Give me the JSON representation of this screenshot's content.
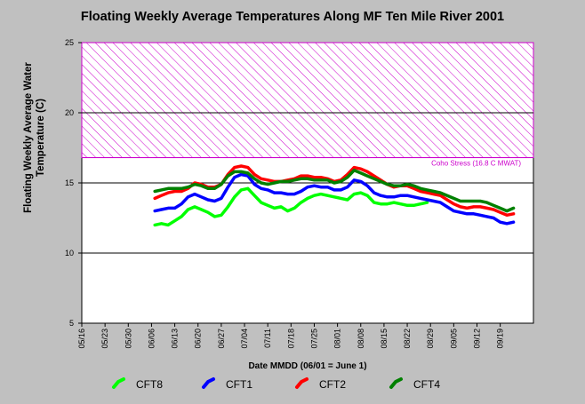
{
  "chart_data": {
    "type": "line",
    "title": "Floating Weekly Average Temperatures Along MF Ten Mile River 2001",
    "xlabel": "Date MMDD (06/01 = June 1)",
    "ylabel": "Floating Weekly Average Water Temperature (C)",
    "ylim": [
      5,
      25
    ],
    "yticks": [
      5,
      10,
      15,
      20,
      25
    ],
    "xlim": [
      "05/16",
      "09/29"
    ],
    "xticks": [
      "05/16",
      "05/23",
      "05/30",
      "06/06",
      "06/13",
      "06/20",
      "06/27",
      "07/04",
      "07/11",
      "07/18",
      "07/25",
      "08/01",
      "08/08",
      "08/15",
      "08/22",
      "08/29",
      "09/05",
      "09/12",
      "09/19"
    ],
    "grid": "horizontal",
    "legend_position": "bottom",
    "threshold": {
      "label": "Coho Stress (16.8 C MWAT)",
      "value": 16.8,
      "upper": 25,
      "color": "#cc00cc"
    },
    "series": [
      {
        "name": "CFT8",
        "color": "#00ff00",
        "x": [
          "06/07",
          "06/09",
          "06/11",
          "06/13",
          "06/15",
          "06/17",
          "06/19",
          "06/21",
          "06/23",
          "06/25",
          "06/27",
          "06/29",
          "07/01",
          "07/03",
          "07/05",
          "07/07",
          "07/09",
          "07/11",
          "07/13",
          "07/15",
          "07/17",
          "07/19",
          "07/21",
          "07/23",
          "07/25",
          "07/27",
          "07/29",
          "07/31",
          "08/02",
          "08/04",
          "08/06",
          "08/08",
          "08/10",
          "08/12",
          "08/14",
          "08/16",
          "08/18",
          "08/20",
          "08/22",
          "08/24",
          "08/26",
          "08/28"
        ],
        "values": [
          12.0,
          12.1,
          12.0,
          12.3,
          12.6,
          13.1,
          13.3,
          13.1,
          12.9,
          12.6,
          12.7,
          13.3,
          14.0,
          14.5,
          14.6,
          14.1,
          13.6,
          13.4,
          13.2,
          13.3,
          13.0,
          13.2,
          13.6,
          13.9,
          14.1,
          14.2,
          14.1,
          14.0,
          13.9,
          13.8,
          14.2,
          14.3,
          14.1,
          13.6,
          13.5,
          13.5,
          13.6,
          13.5,
          13.4,
          13.4,
          13.5,
          13.6
        ]
      },
      {
        "name": "CFT1",
        "color": "#0000ff",
        "x": [
          "06/07",
          "06/09",
          "06/11",
          "06/13",
          "06/15",
          "06/17",
          "06/19",
          "06/21",
          "06/23",
          "06/25",
          "06/27",
          "06/29",
          "07/01",
          "07/03",
          "07/05",
          "07/07",
          "07/09",
          "07/11",
          "07/13",
          "07/15",
          "07/17",
          "07/19",
          "07/21",
          "07/23",
          "07/25",
          "07/27",
          "07/29",
          "07/31",
          "08/02",
          "08/04",
          "08/06",
          "08/08",
          "08/10",
          "08/12",
          "08/14",
          "08/16",
          "08/18",
          "08/20",
          "08/22",
          "08/24",
          "08/26",
          "08/28",
          "08/30",
          "09/01",
          "09/03",
          "09/05",
          "09/07",
          "09/09",
          "09/11",
          "09/13",
          "09/15",
          "09/17",
          "09/19",
          "09/21",
          "09/23"
        ],
        "values": [
          13.0,
          13.1,
          13.2,
          13.2,
          13.5,
          14.0,
          14.2,
          14.0,
          13.8,
          13.7,
          13.9,
          14.7,
          15.4,
          15.6,
          15.5,
          14.9,
          14.6,
          14.5,
          14.3,
          14.3,
          14.2,
          14.2,
          14.4,
          14.7,
          14.8,
          14.7,
          14.7,
          14.5,
          14.5,
          14.7,
          15.2,
          15.1,
          14.8,
          14.3,
          14.1,
          14.0,
          14.0,
          14.1,
          14.1,
          14.0,
          13.9,
          13.8,
          13.7,
          13.6,
          13.3,
          13.0,
          12.9,
          12.8,
          12.8,
          12.7,
          12.6,
          12.5,
          12.2,
          12.1,
          12.2
        ]
      },
      {
        "name": "CFT2",
        "color": "#ff0000",
        "x": [
          "06/07",
          "06/09",
          "06/11",
          "06/13",
          "06/15",
          "06/17",
          "06/19",
          "06/21",
          "06/23",
          "06/25",
          "06/27",
          "06/29",
          "07/01",
          "07/03",
          "07/05",
          "07/07",
          "07/09",
          "07/11",
          "07/13",
          "07/15",
          "07/17",
          "07/19",
          "07/21",
          "07/23",
          "07/25",
          "07/27",
          "07/29",
          "07/31",
          "08/02",
          "08/04",
          "08/06",
          "08/08",
          "08/10",
          "08/12",
          "08/14",
          "08/16",
          "08/18",
          "08/20",
          "08/22",
          "08/24",
          "08/26",
          "08/28",
          "08/30",
          "09/01",
          "09/03",
          "09/05",
          "09/07",
          "09/09",
          "09/11",
          "09/13",
          "09/15",
          "09/17",
          "09/19",
          "09/21",
          "09/23"
        ],
        "values": [
          13.9,
          14.1,
          14.3,
          14.4,
          14.4,
          14.6,
          15.0,
          14.9,
          14.7,
          14.7,
          14.9,
          15.6,
          16.1,
          16.2,
          16.1,
          15.6,
          15.3,
          15.2,
          15.1,
          15.1,
          15.2,
          15.3,
          15.5,
          15.5,
          15.4,
          15.4,
          15.3,
          15.1,
          15.2,
          15.6,
          16.1,
          16.0,
          15.8,
          15.5,
          15.2,
          14.9,
          14.7,
          14.8,
          14.8,
          14.6,
          14.4,
          14.3,
          14.2,
          14.1,
          13.8,
          13.5,
          13.3,
          13.2,
          13.3,
          13.3,
          13.2,
          13.1,
          12.9,
          12.7,
          12.8
        ]
      },
      {
        "name": "CFT4",
        "color": "#008000",
        "x": [
          "06/07",
          "06/09",
          "06/11",
          "06/13",
          "06/15",
          "06/17",
          "06/19",
          "06/21",
          "06/23",
          "06/25",
          "06/27",
          "06/29",
          "07/01",
          "07/03",
          "07/05",
          "07/07",
          "07/09",
          "07/11",
          "07/13",
          "07/15",
          "07/17",
          "07/19",
          "07/21",
          "07/23",
          "07/25",
          "07/27",
          "07/29",
          "07/31",
          "08/02",
          "08/04",
          "08/06",
          "08/08",
          "08/10",
          "08/12",
          "08/14",
          "08/16",
          "08/18",
          "08/20",
          "08/22",
          "08/24",
          "08/26",
          "08/28",
          "08/30",
          "09/01",
          "09/03",
          "09/05",
          "09/07",
          "09/09",
          "09/11",
          "09/13",
          "09/15",
          "09/17",
          "09/19",
          "09/21",
          "09/23"
        ],
        "values": [
          14.4,
          14.5,
          14.6,
          14.6,
          14.6,
          14.7,
          14.9,
          14.8,
          14.6,
          14.6,
          14.9,
          15.5,
          15.8,
          15.8,
          15.7,
          15.3,
          15.0,
          14.9,
          15.0,
          15.1,
          15.1,
          15.2,
          15.3,
          15.3,
          15.2,
          15.2,
          15.2,
          15.0,
          15.1,
          15.4,
          15.9,
          15.7,
          15.5,
          15.3,
          15.1,
          14.9,
          14.8,
          14.8,
          14.9,
          14.8,
          14.6,
          14.5,
          14.4,
          14.3,
          14.1,
          13.9,
          13.7,
          13.7,
          13.7,
          13.7,
          13.6,
          13.4,
          13.2,
          13.0,
          13.2
        ]
      }
    ]
  }
}
